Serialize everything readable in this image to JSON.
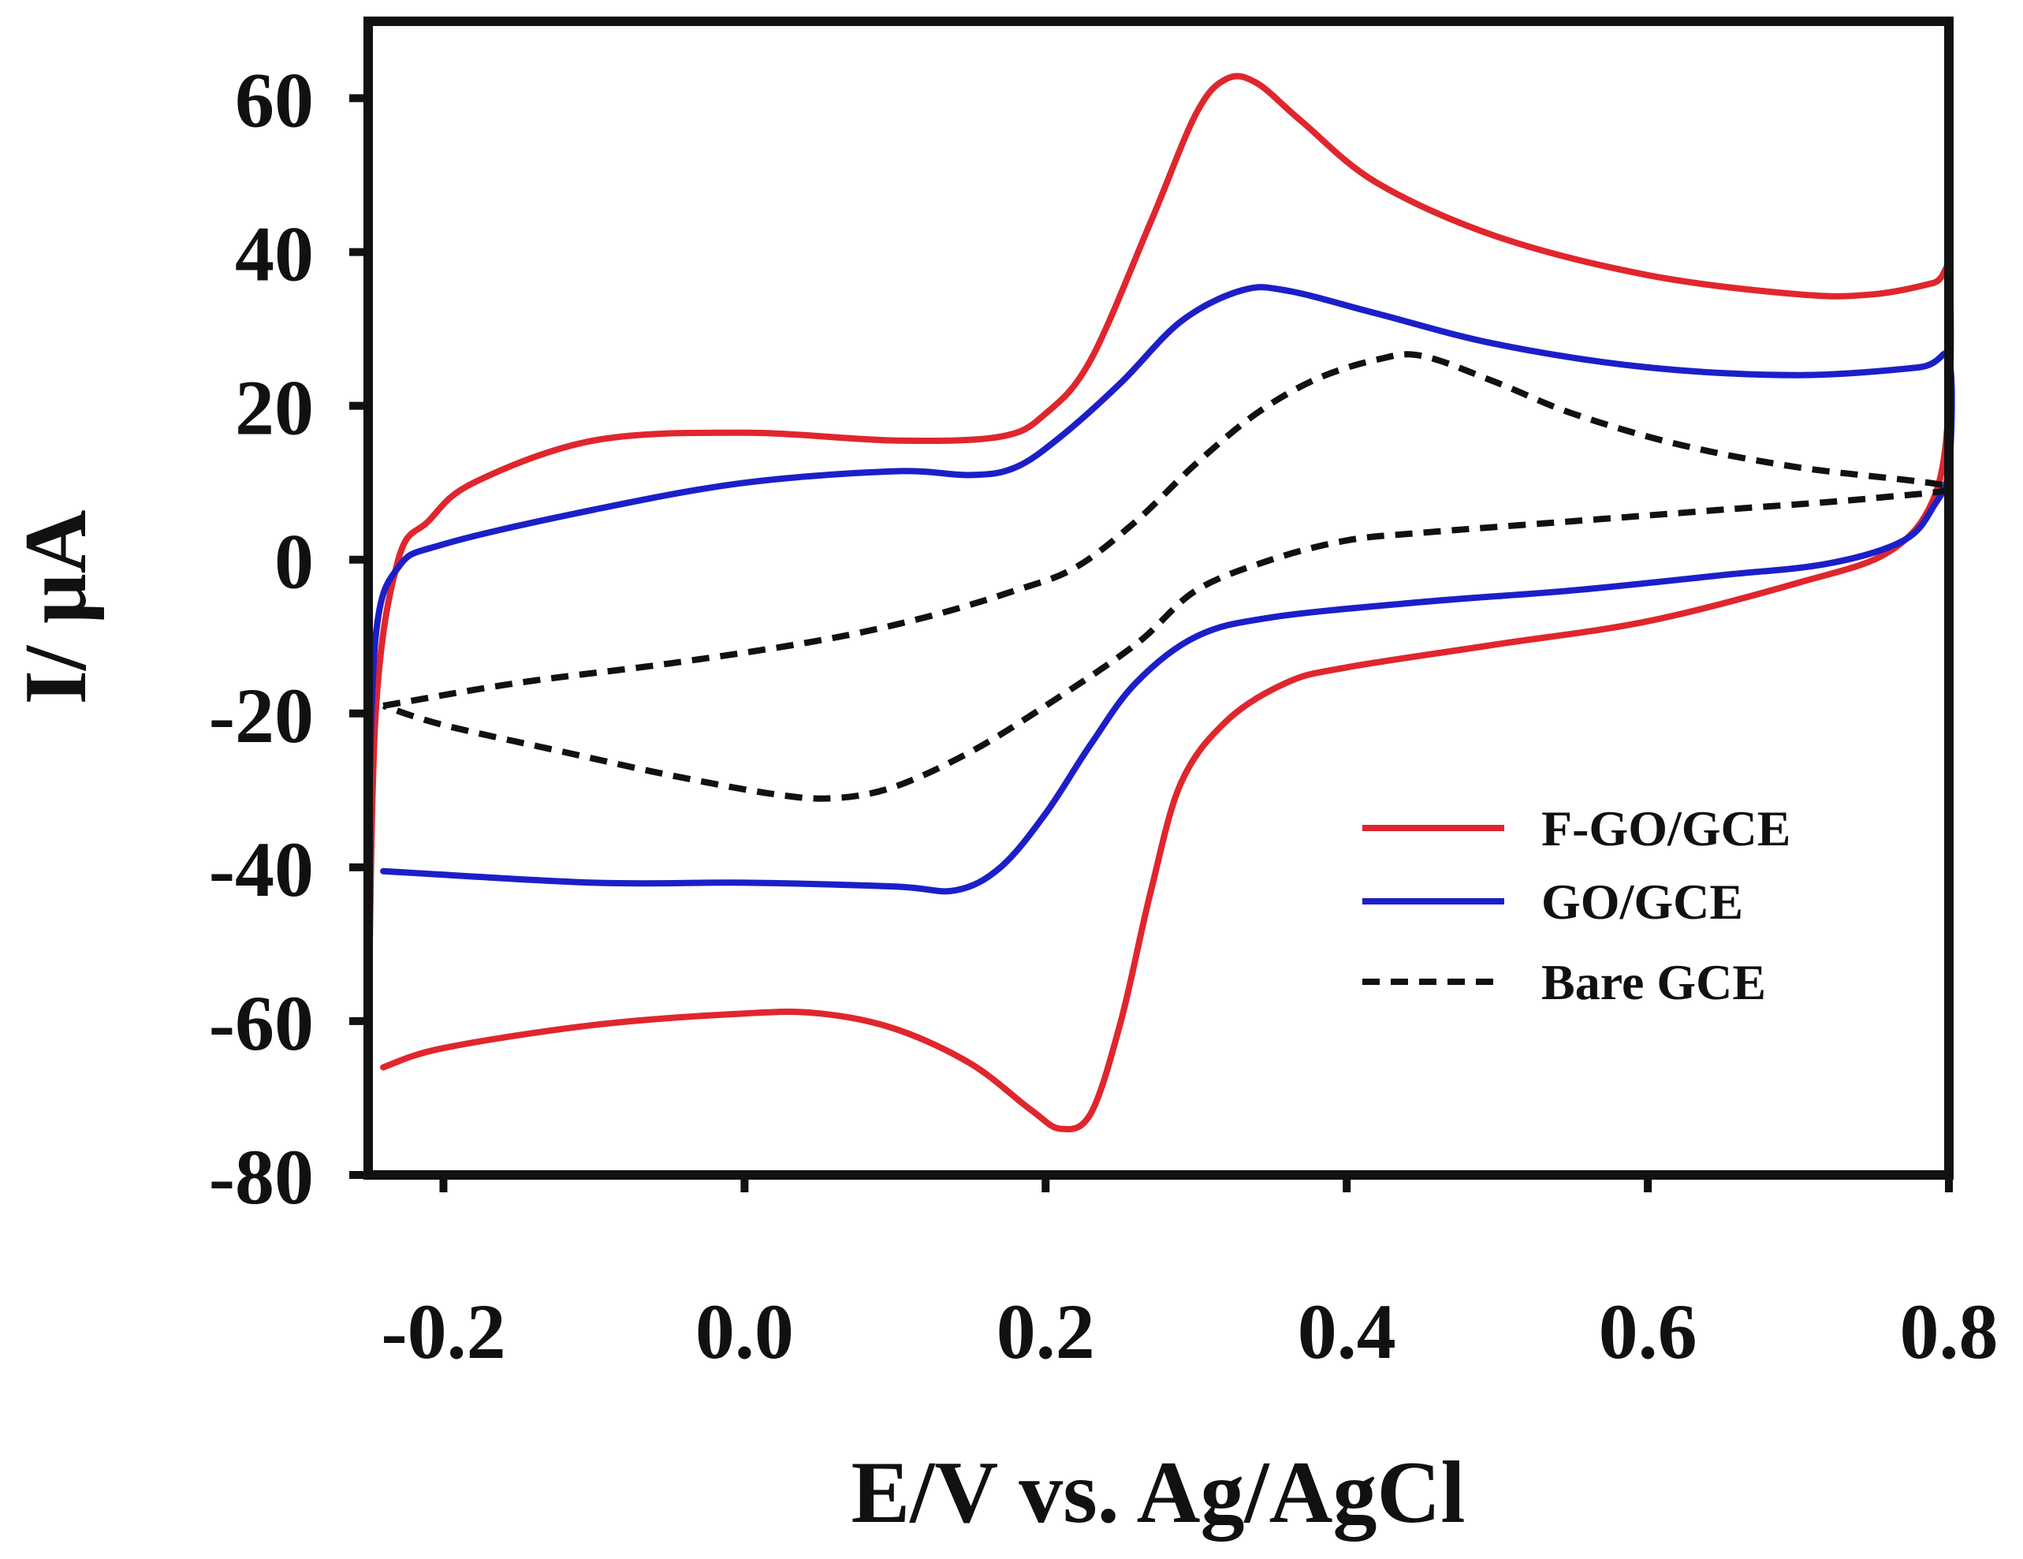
{
  "chart_data": {
    "type": "line",
    "title": "",
    "xlabel": "E/V vs. Ag/AgCl",
    "ylabel": "I/ μA",
    "xlim": [
      -0.25,
      0.8
    ],
    "ylim": [
      -80,
      70
    ],
    "xticks": [
      -0.2,
      0.0,
      0.2,
      0.4,
      0.6,
      0.8
    ],
    "xtick_labels": [
      "-0.2",
      "0.0",
      "0.2",
      "0.4",
      "0.6",
      "0.8"
    ],
    "yticks": [
      60,
      40,
      20,
      0,
      -20,
      -40,
      -60,
      -80
    ],
    "ytick_labels": [
      "60",
      "40",
      "20",
      "0",
      "-20",
      "-40",
      "-60",
      "-80"
    ],
    "grid": false,
    "legend_position": "bottom-right",
    "series": [
      {
        "name": "F-GO/GCE",
        "color": "#e0262d",
        "dash": "solid",
        "points": [
          [
            -0.24,
            -66
          ],
          [
            -0.2,
            -63.5
          ],
          [
            -0.1,
            -60.5
          ],
          [
            0.0,
            -59
          ],
          [
            0.05,
            -59
          ],
          [
            0.1,
            -61
          ],
          [
            0.15,
            -65.5
          ],
          [
            0.19,
            -71.5
          ],
          [
            0.21,
            -74
          ],
          [
            0.23,
            -72
          ],
          [
            0.25,
            -60
          ],
          [
            0.27,
            -43
          ],
          [
            0.29,
            -29
          ],
          [
            0.32,
            -21
          ],
          [
            0.36,
            -16
          ],
          [
            0.4,
            -14
          ],
          [
            0.5,
            -11
          ],
          [
            0.6,
            -8
          ],
          [
            0.7,
            -3
          ],
          [
            0.76,
            1
          ],
          [
            0.79,
            8
          ],
          [
            0.8,
            20
          ],
          [
            0.8,
            37
          ],
          [
            0.79,
            36
          ],
          [
            0.75,
            34.5
          ],
          [
            0.7,
            34.5
          ],
          [
            0.6,
            37
          ],
          [
            0.5,
            42
          ],
          [
            0.42,
            49
          ],
          [
            0.37,
            57
          ],
          [
            0.34,
            62
          ],
          [
            0.32,
            62.5
          ],
          [
            0.3,
            58
          ],
          [
            0.27,
            44
          ],
          [
            0.23,
            26
          ],
          [
            0.2,
            19
          ],
          [
            0.17,
            16
          ],
          [
            0.1,
            15.5
          ],
          [
            0.0,
            16.5
          ],
          [
            -0.1,
            15.5
          ],
          [
            -0.18,
            10
          ],
          [
            -0.21,
            5
          ],
          [
            -0.23,
            0
          ],
          [
            -0.245,
            -20
          ],
          [
            -0.25,
            -64
          ]
        ]
      },
      {
        "name": "GO/GCE",
        "color": "#1c1fc8",
        "dash": "solid",
        "points": [
          [
            -0.24,
            -40.5
          ],
          [
            -0.1,
            -42
          ],
          [
            0.0,
            -42
          ],
          [
            0.1,
            -42.5
          ],
          [
            0.14,
            -43
          ],
          [
            0.17,
            -40
          ],
          [
            0.2,
            -33
          ],
          [
            0.23,
            -24
          ],
          [
            0.26,
            -16
          ],
          [
            0.3,
            -10
          ],
          [
            0.35,
            -7.5
          ],
          [
            0.45,
            -5.5
          ],
          [
            0.55,
            -4
          ],
          [
            0.65,
            -2
          ],
          [
            0.72,
            -0.5
          ],
          [
            0.77,
            2.5
          ],
          [
            0.79,
            7
          ],
          [
            0.8,
            12
          ],
          [
            0.8,
            26
          ],
          [
            0.78,
            25
          ],
          [
            0.7,
            24
          ],
          [
            0.6,
            25
          ],
          [
            0.5,
            28
          ],
          [
            0.42,
            32
          ],
          [
            0.36,
            35
          ],
          [
            0.33,
            35
          ],
          [
            0.29,
            31
          ],
          [
            0.25,
            23
          ],
          [
            0.21,
            16
          ],
          [
            0.18,
            12
          ],
          [
            0.15,
            11
          ],
          [
            0.1,
            11.5
          ],
          [
            0.0,
            10
          ],
          [
            -0.1,
            6.5
          ],
          [
            -0.2,
            2
          ],
          [
            -0.23,
            -1
          ],
          [
            -0.245,
            -10
          ],
          [
            -0.25,
            -38
          ]
        ]
      },
      {
        "name": "Bare GCE",
        "color": "#111111",
        "dash": "dashed",
        "points": [
          [
            -0.24,
            -19
          ],
          [
            -0.15,
            -16
          ],
          [
            -0.05,
            -13.5
          ],
          [
            0.05,
            -10.5
          ],
          [
            0.12,
            -7.5
          ],
          [
            0.18,
            -4
          ],
          [
            0.22,
            -1
          ],
          [
            0.26,
            5
          ],
          [
            0.3,
            12.5
          ],
          [
            0.34,
            19
          ],
          [
            0.38,
            23.5
          ],
          [
            0.42,
            26
          ],
          [
            0.45,
            26.5
          ],
          [
            0.5,
            23
          ],
          [
            0.55,
            19
          ],
          [
            0.62,
            15
          ],
          [
            0.7,
            12
          ],
          [
            0.8,
            9.5
          ],
          [
            0.75,
            8
          ],
          [
            0.65,
            6.5
          ],
          [
            0.55,
            5
          ],
          [
            0.45,
            3.5
          ],
          [
            0.4,
            2.5
          ],
          [
            0.35,
            0
          ],
          [
            0.3,
            -4
          ],
          [
            0.26,
            -11
          ],
          [
            0.2,
            -19
          ],
          [
            0.15,
            -25
          ],
          [
            0.1,
            -29.5
          ],
          [
            0.06,
            -31
          ],
          [
            0.02,
            -30.5
          ],
          [
            -0.05,
            -28
          ],
          [
            -0.12,
            -25
          ],
          [
            -0.2,
            -21.5
          ],
          [
            -0.24,
            -19
          ]
        ]
      }
    ]
  }
}
